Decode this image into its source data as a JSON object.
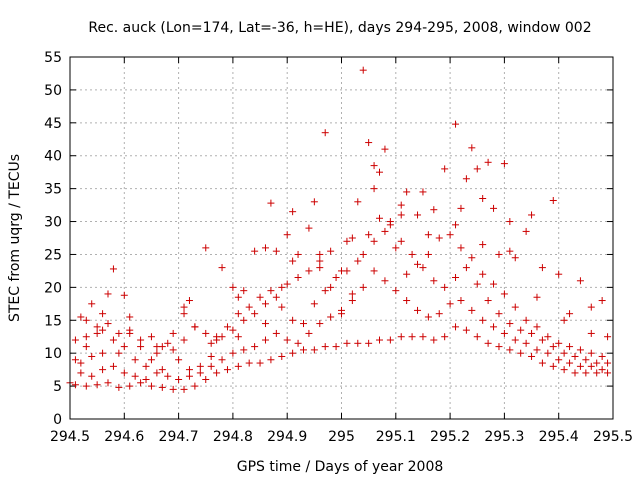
{
  "chart_data": {
    "type": "scatter",
    "title": "Rec. auck (Lon=174, Lat=-36, h=HE), days 294-295, 2008, window 002",
    "xlabel": "GPS time / Days of year 2008",
    "ylabel": "STEC from uqrg / TECUs",
    "xlim": [
      294.5,
      295.5
    ],
    "ylim": [
      0,
      55
    ],
    "x_ticks": [
      294.5,
      294.6,
      294.7,
      294.8,
      294.9,
      295,
      295.1,
      295.2,
      295.3,
      295.4,
      295.5
    ],
    "x_tick_labels": [
      "294.5",
      "294.6",
      "294.7",
      "294.8",
      "294.9",
      "295",
      "295.1",
      "295.2",
      "295.3",
      "295.4",
      "295.5"
    ],
    "y_ticks": [
      0,
      5,
      10,
      15,
      20,
      25,
      30,
      35,
      40,
      45,
      50,
      55
    ],
    "y_tick_labels": [
      "0",
      "5",
      "10",
      "15",
      "20",
      "25",
      "30",
      "35",
      "40",
      "45",
      "50",
      "55"
    ],
    "grid": true,
    "marker": "plus",
    "series_color": "#cc0000",
    "points": [
      [
        294.5,
        5.5
      ],
      [
        294.51,
        9.0
      ],
      [
        294.52,
        15.5
      ],
      [
        294.53,
        11.0
      ],
      [
        294.54,
        17.5
      ],
      [
        294.55,
        14.0
      ],
      [
        294.56,
        13.5
      ],
      [
        294.57,
        19.0
      ],
      [
        294.58,
        22.8
      ],
      [
        294.59,
        10.0
      ],
      [
        294.6,
        18.8
      ],
      [
        294.61,
        15.5
      ],
      [
        294.63,
        11.0
      ],
      [
        294.65,
        9.0
      ],
      [
        294.67,
        7.5
      ],
      [
        294.69,
        13.0
      ],
      [
        294.71,
        17.0
      ],
      [
        294.72,
        18.0
      ],
      [
        294.73,
        14.0
      ],
      [
        294.75,
        26.0
      ],
      [
        294.77,
        12.0
      ],
      [
        294.78,
        23.0
      ],
      [
        294.8,
        20.0
      ],
      [
        294.81,
        18.5
      ],
      [
        294.82,
        19.5
      ],
      [
        294.84,
        25.5
      ],
      [
        294.86,
        26.0
      ],
      [
        294.87,
        32.8
      ],
      [
        294.88,
        25.5
      ],
      [
        294.89,
        20.0
      ],
      [
        294.9,
        28.0
      ],
      [
        294.91,
        31.5
      ],
      [
        294.92,
        25.0
      ],
      [
        294.94,
        29.0
      ],
      [
        294.95,
        33.0
      ],
      [
        294.96,
        25.0
      ],
      [
        294.97,
        43.5
      ],
      [
        294.98,
        25.5
      ],
      [
        295.0,
        22.5
      ],
      [
        295.02,
        27.5
      ],
      [
        295.03,
        33.0
      ],
      [
        295.04,
        53.0
      ],
      [
        295.05,
        42.0
      ],
      [
        295.06,
        38.5
      ],
      [
        295.07,
        37.5
      ],
      [
        295.08,
        41.0
      ],
      [
        295.09,
        30.0
      ],
      [
        295.11,
        32.5
      ],
      [
        295.12,
        34.5
      ],
      [
        295.14,
        31.0
      ],
      [
        295.15,
        34.5
      ],
      [
        295.17,
        31.8
      ],
      [
        295.19,
        38.0
      ],
      [
        295.21,
        44.8
      ],
      [
        295.22,
        32.0
      ],
      [
        295.23,
        36.5
      ],
      [
        295.24,
        41.2
      ],
      [
        295.25,
        38.0
      ],
      [
        295.26,
        33.5
      ],
      [
        295.27,
        39.0
      ],
      [
        295.28,
        32.0
      ],
      [
        295.29,
        25.0
      ],
      [
        295.3,
        38.8
      ],
      [
        295.31,
        30.0
      ],
      [
        295.32,
        24.5
      ],
      [
        295.34,
        28.5
      ],
      [
        295.35,
        31.0
      ],
      [
        295.37,
        23.0
      ],
      [
        295.39,
        33.2
      ],
      [
        295.4,
        22.0
      ],
      [
        295.42,
        16.0
      ],
      [
        295.44,
        21.0
      ],
      [
        295.46,
        17.0
      ],
      [
        295.48,
        18.0
      ],
      [
        295.49,
        12.5
      ],
      [
        294.51,
        5.2
      ],
      [
        294.53,
        5.0
      ],
      [
        294.55,
        5.2
      ],
      [
        294.57,
        5.5
      ],
      [
        294.59,
        4.8
      ],
      [
        294.61,
        5.0
      ],
      [
        294.63,
        5.5
      ],
      [
        294.65,
        5.0
      ],
      [
        294.67,
        4.8
      ],
      [
        294.69,
        4.5
      ],
      [
        294.71,
        4.5
      ],
      [
        294.73,
        5.0
      ],
      [
        294.75,
        6.0
      ],
      [
        294.77,
        7.0
      ],
      [
        294.79,
        7.5
      ],
      [
        294.81,
        8.0
      ],
      [
        294.83,
        8.5
      ],
      [
        294.85,
        8.5
      ],
      [
        294.87,
        9.0
      ],
      [
        294.89,
        9.5
      ],
      [
        294.91,
        10.0
      ],
      [
        294.93,
        10.5
      ],
      [
        294.95,
        10.5
      ],
      [
        294.97,
        11.0
      ],
      [
        294.99,
        11.0
      ],
      [
        295.01,
        11.5
      ],
      [
        295.03,
        11.5
      ],
      [
        295.05,
        11.5
      ],
      [
        295.07,
        12.0
      ],
      [
        295.09,
        12.0
      ],
      [
        295.11,
        12.5
      ],
      [
        295.13,
        12.5
      ],
      [
        295.15,
        12.5
      ],
      [
        295.17,
        12.0
      ],
      [
        295.19,
        12.5
      ],
      [
        295.21,
        14.0
      ],
      [
        295.23,
        13.5
      ],
      [
        295.25,
        12.5
      ],
      [
        295.27,
        11.5
      ],
      [
        295.29,
        11.0
      ],
      [
        295.31,
        10.5
      ],
      [
        295.33,
        10.0
      ],
      [
        295.35,
        9.5
      ],
      [
        295.37,
        8.5
      ],
      [
        295.39,
        8.0
      ],
      [
        295.41,
        7.5
      ],
      [
        295.43,
        7.0
      ],
      [
        295.45,
        7.0
      ],
      [
        295.47,
        7.0
      ],
      [
        295.49,
        7.0
      ],
      [
        294.52,
        8.5
      ],
      [
        294.54,
        9.5
      ],
      [
        294.56,
        10.0
      ],
      [
        294.58,
        12.0
      ],
      [
        294.6,
        11.0
      ],
      [
        294.62,
        9.0
      ],
      [
        294.64,
        8.0
      ],
      [
        294.66,
        10.0
      ],
      [
        294.68,
        11.5
      ],
      [
        294.7,
        9.0
      ],
      [
        294.72,
        7.5
      ],
      [
        294.74,
        8.0
      ],
      [
        294.76,
        9.5
      ],
      [
        294.78,
        12.5
      ],
      [
        294.8,
        13.5
      ],
      [
        294.82,
        15.0
      ],
      [
        294.84,
        16.0
      ],
      [
        294.86,
        17.5
      ],
      [
        294.88,
        18.5
      ],
      [
        294.9,
        20.5
      ],
      [
        294.92,
        21.5
      ],
      [
        294.94,
        22.5
      ],
      [
        294.96,
        24.0
      ],
      [
        294.98,
        20.0
      ],
      [
        295.0,
        16.0
      ],
      [
        295.02,
        19.0
      ],
      [
        295.04,
        25.0
      ],
      [
        295.06,
        27.0
      ],
      [
        295.08,
        28.5
      ],
      [
        295.1,
        26.0
      ],
      [
        295.12,
        22.0
      ],
      [
        295.14,
        23.5
      ],
      [
        295.16,
        25.0
      ],
      [
        295.18,
        27.5
      ],
      [
        295.2,
        28.0
      ],
      [
        295.22,
        26.0
      ],
      [
        295.24,
        24.5
      ],
      [
        295.26,
        22.0
      ],
      [
        295.28,
        20.5
      ],
      [
        295.3,
        19.0
      ],
      [
        295.32,
        17.0
      ],
      [
        295.34,
        15.0
      ],
      [
        295.36,
        14.0
      ],
      [
        295.38,
        12.5
      ],
      [
        295.4,
        11.5
      ],
      [
        295.42,
        11.0
      ],
      [
        295.44,
        10.5
      ],
      [
        295.46,
        10.0
      ],
      [
        295.48,
        9.5
      ],
      [
        294.51,
        12.0
      ],
      [
        294.53,
        12.5
      ],
      [
        294.55,
        13.0
      ],
      [
        294.57,
        14.5
      ],
      [
        294.59,
        13.0
      ],
      [
        294.61,
        13.5
      ],
      [
        294.63,
        12.0
      ],
      [
        294.65,
        12.5
      ],
      [
        294.67,
        11.0
      ],
      [
        294.69,
        10.5
      ],
      [
        294.71,
        12.0
      ],
      [
        294.73,
        14.0
      ],
      [
        294.75,
        13.0
      ],
      [
        294.77,
        12.5
      ],
      [
        294.79,
        14.0
      ],
      [
        294.81,
        16.0
      ],
      [
        294.83,
        17.0
      ],
      [
        294.85,
        18.5
      ],
      [
        294.87,
        19.5
      ],
      [
        294.89,
        17.0
      ],
      [
        294.91,
        15.0
      ],
      [
        294.93,
        14.5
      ],
      [
        294.95,
        17.5
      ],
      [
        294.97,
        19.5
      ],
      [
        294.99,
        21.5
      ],
      [
        295.01,
        22.5
      ],
      [
        295.03,
        24.0
      ],
      [
        295.05,
        28.0
      ],
      [
        295.07,
        30.5
      ],
      [
        295.09,
        29.5
      ],
      [
        295.11,
        27.0
      ],
      [
        295.13,
        25.0
      ],
      [
        295.15,
        23.0
      ],
      [
        295.17,
        21.0
      ],
      [
        295.19,
        20.0
      ],
      [
        295.21,
        21.5
      ],
      [
        295.23,
        23.0
      ],
      [
        295.25,
        20.5
      ],
      [
        295.27,
        18.0
      ],
      [
        295.29,
        16.0
      ],
      [
        295.31,
        14.5
      ],
      [
        295.33,
        13.5
      ],
      [
        295.35,
        13.0
      ],
      [
        295.37,
        12.0
      ],
      [
        295.39,
        11.0
      ],
      [
        295.41,
        10.0
      ],
      [
        295.43,
        9.5
      ],
      [
        295.45,
        9.0
      ],
      [
        295.47,
        8.5
      ],
      [
        295.49,
        8.5
      ],
      [
        294.52,
        7.0
      ],
      [
        294.54,
        6.5
      ],
      [
        294.56,
        7.5
      ],
      [
        294.58,
        8.0
      ],
      [
        294.6,
        7.0
      ],
      [
        294.62,
        6.5
      ],
      [
        294.64,
        6.0
      ],
      [
        294.66,
        7.0
      ],
      [
        294.68,
        6.5
      ],
      [
        294.7,
        6.0
      ],
      [
        294.72,
        6.5
      ],
      [
        294.74,
        7.0
      ],
      [
        294.76,
        8.0
      ],
      [
        294.78,
        9.0
      ],
      [
        294.8,
        10.0
      ],
      [
        294.82,
        10.5
      ],
      [
        294.84,
        11.0
      ],
      [
        294.86,
        12.0
      ],
      [
        294.88,
        13.0
      ],
      [
        294.9,
        12.0
      ],
      [
        294.92,
        11.5
      ],
      [
        294.94,
        13.0
      ],
      [
        294.96,
        14.5
      ],
      [
        294.98,
        15.5
      ],
      [
        295.0,
        16.5
      ],
      [
        295.02,
        18.0
      ],
      [
        295.04,
        20.0
      ],
      [
        295.06,
        22.5
      ],
      [
        295.08,
        21.0
      ],
      [
        295.1,
        19.5
      ],
      [
        295.12,
        18.0
      ],
      [
        295.14,
        16.5
      ],
      [
        295.16,
        15.5
      ],
      [
        295.18,
        16.0
      ],
      [
        295.2,
        17.5
      ],
      [
        295.22,
        18.0
      ],
      [
        295.24,
        16.5
      ],
      [
        295.26,
        15.0
      ],
      [
        295.28,
        14.0
      ],
      [
        295.3,
        13.0
      ],
      [
        295.32,
        12.0
      ],
      [
        295.34,
        11.5
      ],
      [
        295.36,
        10.5
      ],
      [
        295.38,
        10.0
      ],
      [
        295.4,
        9.0
      ],
      [
        295.42,
        8.5
      ],
      [
        295.44,
        8.0
      ],
      [
        295.46,
        8.0
      ],
      [
        295.48,
        7.5
      ],
      [
        294.53,
        15.0
      ],
      [
        294.56,
        16.0
      ],
      [
        294.61,
        13.0
      ],
      [
        294.66,
        11.0
      ],
      [
        294.71,
        16.0
      ],
      [
        294.76,
        11.5
      ],
      [
        294.81,
        12.5
      ],
      [
        294.86,
        14.5
      ],
      [
        294.91,
        24.0
      ],
      [
        294.96,
        23.0
      ],
      [
        295.01,
        27.0
      ],
      [
        295.06,
        35.0
      ],
      [
        295.11,
        31.0
      ],
      [
        295.16,
        28.0
      ],
      [
        295.21,
        29.5
      ],
      [
        295.26,
        26.5
      ],
      [
        295.31,
        25.5
      ],
      [
        295.36,
        18.5
      ],
      [
        295.41,
        15.0
      ],
      [
        295.46,
        13.0
      ]
    ]
  }
}
